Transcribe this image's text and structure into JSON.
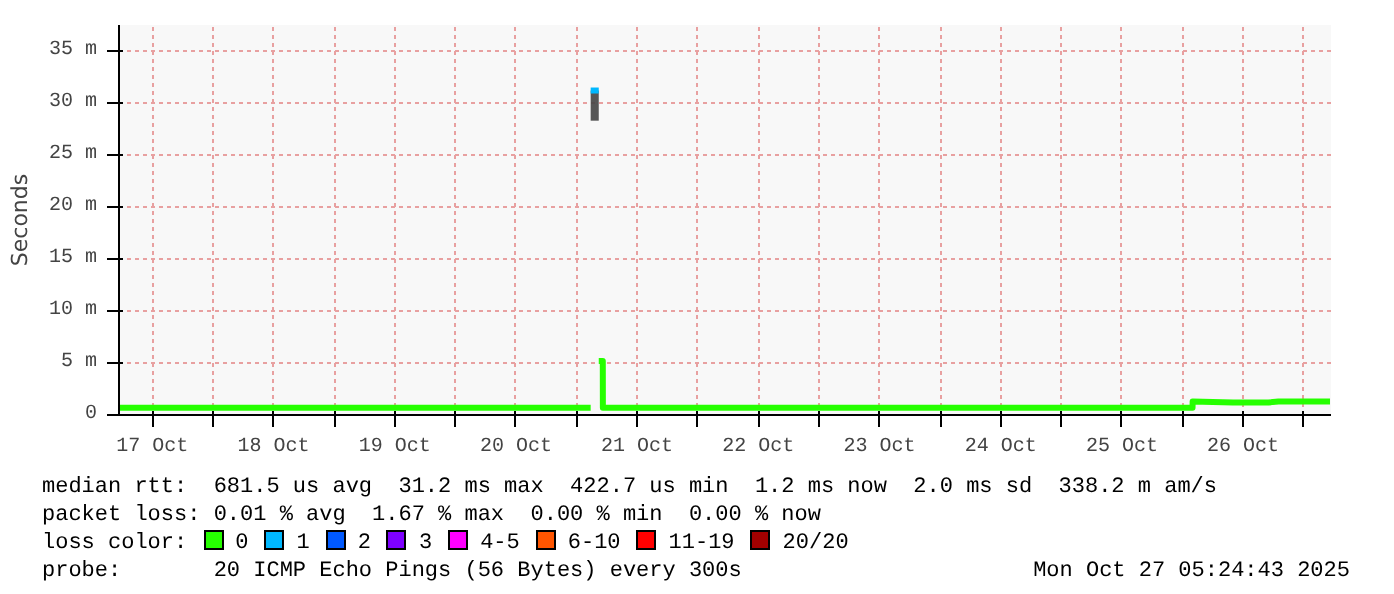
{
  "chart_data": {
    "type": "line",
    "ylabel": "Seconds",
    "xlim": [
      "2025-10-17T05:24",
      "2025-10-27T05:24"
    ],
    "xticks": [
      {
        "value": "2025-10-17T12:00",
        "label": "17 Oct"
      },
      {
        "value": "2025-10-18T00:00",
        "label": null
      },
      {
        "value": "2025-10-18T12:00",
        "label": "18 Oct"
      },
      {
        "value": "2025-10-19T00:00",
        "label": null
      },
      {
        "value": "2025-10-19T12:00",
        "label": "19 Oct"
      },
      {
        "value": "2025-10-20T00:00",
        "label": null
      },
      {
        "value": "2025-10-20T12:00",
        "label": "20 Oct"
      },
      {
        "value": "2025-10-21T00:00",
        "label": null
      },
      {
        "value": "2025-10-21T12:00",
        "label": "21 Oct"
      },
      {
        "value": "2025-10-22T00:00",
        "label": null
      },
      {
        "value": "2025-10-22T12:00",
        "label": "22 Oct"
      },
      {
        "value": "2025-10-23T00:00",
        "label": null
      },
      {
        "value": "2025-10-23T12:00",
        "label": "23 Oct"
      },
      {
        "value": "2025-10-24T00:00",
        "label": null
      },
      {
        "value": "2025-10-24T12:00",
        "label": "24 Oct"
      },
      {
        "value": "2025-10-25T00:00",
        "label": null
      },
      {
        "value": "2025-10-25T12:00",
        "label": "25 Oct"
      },
      {
        "value": "2025-10-26T00:00",
        "label": null
      },
      {
        "value": "2025-10-26T12:00",
        "label": "26 Oct"
      },
      {
        "value": "2025-10-27T00:00",
        "label": null
      }
    ],
    "ylim": [
      0,
      37.5
    ],
    "yticks": [
      0,
      {
        "value": 5,
        "label": "5 m"
      },
      {
        "value": 10,
        "label": "10 m"
      },
      {
        "value": 15,
        "label": "15 m"
      },
      {
        "value": 20,
        "label": "20 m"
      },
      {
        "value": 25,
        "label": "25 m"
      },
      {
        "value": 30,
        "label": "30 m"
      },
      {
        "value": 35,
        "label": "35 m"
      }
    ],
    "grid": true,
    "legend": "bottom",
    "legend_title": "loss color:",
    "series": [
      {
        "name": "0",
        "color": "#26ff00",
        "x": [
          "2025-10-17T05:24",
          "2025-10-21T02:48",
          "2025-10-21T03:30",
          "2025-10-21T04:24",
          "2025-10-21T05:12",
          "2025-10-21T05:13",
          "2025-10-26T01:59",
          "2025-10-26T02:00",
          "2025-10-26T10:00",
          "2025-10-26T17:00",
          "2025-10-26T19:00",
          "2025-10-27T05:12"
        ],
        "values": [
          0.7,
          0.7,
          null,
          5.2,
          5.2,
          0.7,
          0.7,
          1.3,
          1.2,
          1.2,
          1.3,
          1.3
        ]
      },
      {
        "name": "1",
        "color": "#00b8ff",
        "x": [
          "2025-10-21T02:48",
          "2025-10-21T04:24"
        ],
        "values": [
          31.2,
          31.2
        ],
        "lower": [
          28.3,
          28.3
        ],
        "upper": [
          31.2,
          31.2
        ]
      },
      {
        "name": "2",
        "color": "#0059ff"
      },
      {
        "name": "3",
        "color": "#7e00ff"
      },
      {
        "name": "4-5",
        "color": "#ff00ff"
      },
      {
        "name": "6-10",
        "color": "#ff5500"
      },
      {
        "name": "11-19",
        "color": "#ff0000"
      },
      {
        "name": "20/20",
        "color": "#a10000"
      }
    ],
    "annotations": [
      "median rtt:  681.5 us avg  31.2 ms max  422.7 us min  1.2 ms now  2.0 ms sd  338.2 m am/s",
      "packet loss: 0.01 % avg  1.67 % max  0.00 % min  0.00 % now",
      "probe:       20 ICMP Echo Pings (56 Bytes) every 300s",
      "Mon Oct 27 05:24:43 2025"
    ]
  }
}
